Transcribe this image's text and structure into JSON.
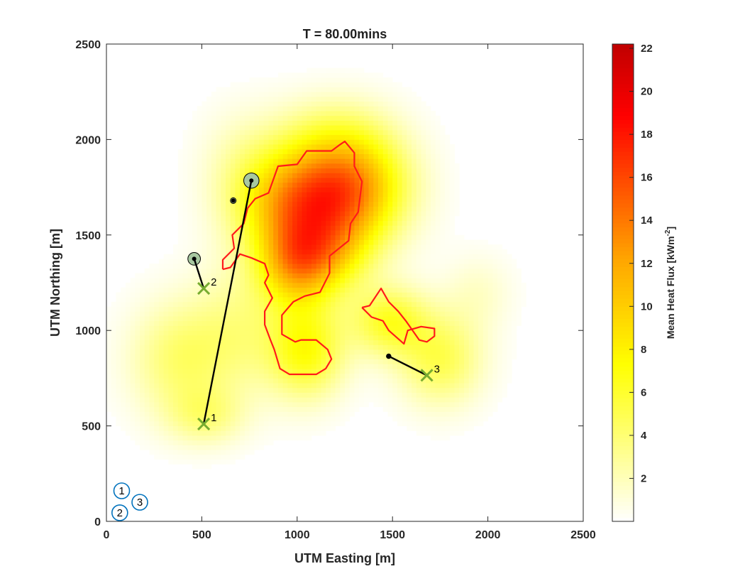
{
  "chart_data": {
    "type": "heatmap",
    "title": "T = 80.00mins",
    "xlabel": "UTM Easting [m]",
    "ylabel": "UTM Northing [m]",
    "xlim": [
      0,
      2500
    ],
    "ylim": [
      0,
      2500
    ],
    "xticks": [
      0,
      500,
      1000,
      1500,
      2000,
      2500
    ],
    "yticks": [
      0,
      500,
      1000,
      1500,
      2000,
      2500
    ],
    "grid": false,
    "colorbar": {
      "label_prefix": "Mean Heat Flux [kWm",
      "label_exponent": "-2",
      "label_suffix": "]",
      "range": [
        0,
        22.2
      ],
      "ticks": [
        2,
        4,
        6,
        8,
        10,
        12,
        14,
        16,
        18,
        20,
        22
      ],
      "colors": [
        "#ffffff",
        "#ffff00",
        "#ffa500",
        "#ff0000",
        "#c00000"
      ]
    },
    "heat_sources": [
      {
        "x": 1150,
        "y": 1700,
        "sx": 330,
        "sy": 300,
        "peak": 14
      },
      {
        "x": 1350,
        "y": 1800,
        "sx": 260,
        "sy": 260,
        "peak": 4
      },
      {
        "x": 1000,
        "y": 1350,
        "sx": 200,
        "sy": 220,
        "peak": 10
      },
      {
        "x": 880,
        "y": 1650,
        "sx": 260,
        "sy": 260,
        "peak": 4
      },
      {
        "x": 1050,
        "y": 900,
        "sx": 200,
        "sy": 250,
        "peak": 7
      },
      {
        "x": 1480,
        "y": 1050,
        "sx": 200,
        "sy": 180,
        "peak": 6
      },
      {
        "x": 1750,
        "y": 850,
        "sx": 220,
        "sy": 240,
        "peak": 5
      },
      {
        "x": 1950,
        "y": 1200,
        "sx": 180,
        "sy": 200,
        "peak": 1.5
      },
      {
        "x": 380,
        "y": 850,
        "sx": 260,
        "sy": 300,
        "peak": 4
      },
      {
        "x": 700,
        "y": 1000,
        "sx": 250,
        "sy": 350,
        "peak": 3
      },
      {
        "x": 700,
        "y": 1900,
        "sx": 220,
        "sy": 280,
        "peak": 1.5
      },
      {
        "x": 1200,
        "y": 2050,
        "sx": 300,
        "sy": 200,
        "peak": 2
      },
      {
        "x": 520,
        "y": 550,
        "sx": 200,
        "sy": 150,
        "peak": 3
      },
      {
        "x": 1200,
        "y": 1400,
        "sx": 200,
        "sy": 200,
        "peak": 4
      }
    ],
    "contours": [
      [
        [
          610,
          1320
        ],
        [
          610,
          1370
        ],
        [
          670,
          1430
        ],
        [
          660,
          1500
        ],
        [
          720,
          1560
        ],
        [
          740,
          1640
        ],
        [
          780,
          1690
        ],
        [
          850,
          1720
        ],
        [
          900,
          1860
        ],
        [
          1000,
          1870
        ],
        [
          1050,
          1940
        ],
        [
          1120,
          1940
        ],
        [
          1180,
          1940
        ],
        [
          1220,
          1970
        ],
        [
          1250,
          1990
        ],
        [
          1300,
          1930
        ],
        [
          1300,
          1860
        ],
        [
          1340,
          1780
        ],
        [
          1330,
          1700
        ],
        [
          1320,
          1620
        ],
        [
          1280,
          1560
        ],
        [
          1270,
          1470
        ],
        [
          1170,
          1390
        ],
        [
          1170,
          1300
        ],
        [
          1120,
          1200
        ],
        [
          1040,
          1180
        ],
        [
          980,
          1150
        ],
        [
          920,
          1080
        ],
        [
          920,
          980
        ],
        [
          990,
          940
        ],
        [
          1020,
          950
        ],
        [
          1100,
          950
        ],
        [
          1160,
          900
        ],
        [
          1180,
          850
        ],
        [
          1150,
          800
        ],
        [
          1100,
          770
        ],
        [
          960,
          770
        ],
        [
          910,
          800
        ],
        [
          880,
          900
        ],
        [
          860,
          950
        ],
        [
          830,
          1030
        ],
        [
          830,
          1100
        ],
        [
          870,
          1170
        ],
        [
          830,
          1250
        ],
        [
          850,
          1290
        ],
        [
          830,
          1350
        ],
        [
          760,
          1380
        ],
        [
          700,
          1400
        ],
        [
          650,
          1330
        ],
        [
          610,
          1320
        ]
      ],
      [
        [
          1340,
          1120
        ],
        [
          1390,
          1070
        ],
        [
          1450,
          1050
        ],
        [
          1480,
          1000
        ],
        [
          1560,
          930
        ],
        [
          1580,
          1000
        ],
        [
          1650,
          1020
        ],
        [
          1720,
          1010
        ],
        [
          1720,
          970
        ],
        [
          1680,
          940
        ],
        [
          1640,
          950
        ],
        [
          1570,
          1050
        ],
        [
          1530,
          1100
        ],
        [
          1480,
          1150
        ],
        [
          1440,
          1220
        ],
        [
          1380,
          1130
        ],
        [
          1340,
          1120
        ]
      ]
    ],
    "agents": [
      {
        "label": "1",
        "x": [
          510,
          760
        ],
        "y": [
          510,
          1785
        ],
        "start_radius": 0,
        "end_radius": 40
      },
      {
        "label": "2",
        "x": [
          510,
          460
        ],
        "y": [
          1220,
          1375
        ],
        "start_radius": 0,
        "end_radius": 33
      },
      {
        "label": "3",
        "x": [
          1680,
          1480
        ],
        "y": [
          765,
          865
        ],
        "start_radius": 0,
        "end_radius": 12
      }
    ],
    "extra_markers": [
      {
        "x": 665,
        "y": 1680,
        "radius": 15
      }
    ],
    "bases": [
      {
        "label": "1",
        "x": 80,
        "y": 160
      },
      {
        "label": "2",
        "x": 70,
        "y": 45
      },
      {
        "label": "3",
        "x": 175,
        "y": 100
      }
    ],
    "colors": {
      "contour": "#ff1a1a",
      "path": "#000000",
      "agent_x": "#77ac30",
      "agent_marker_fill": "#a8c8a0",
      "base_circle": "#0072bd"
    }
  }
}
